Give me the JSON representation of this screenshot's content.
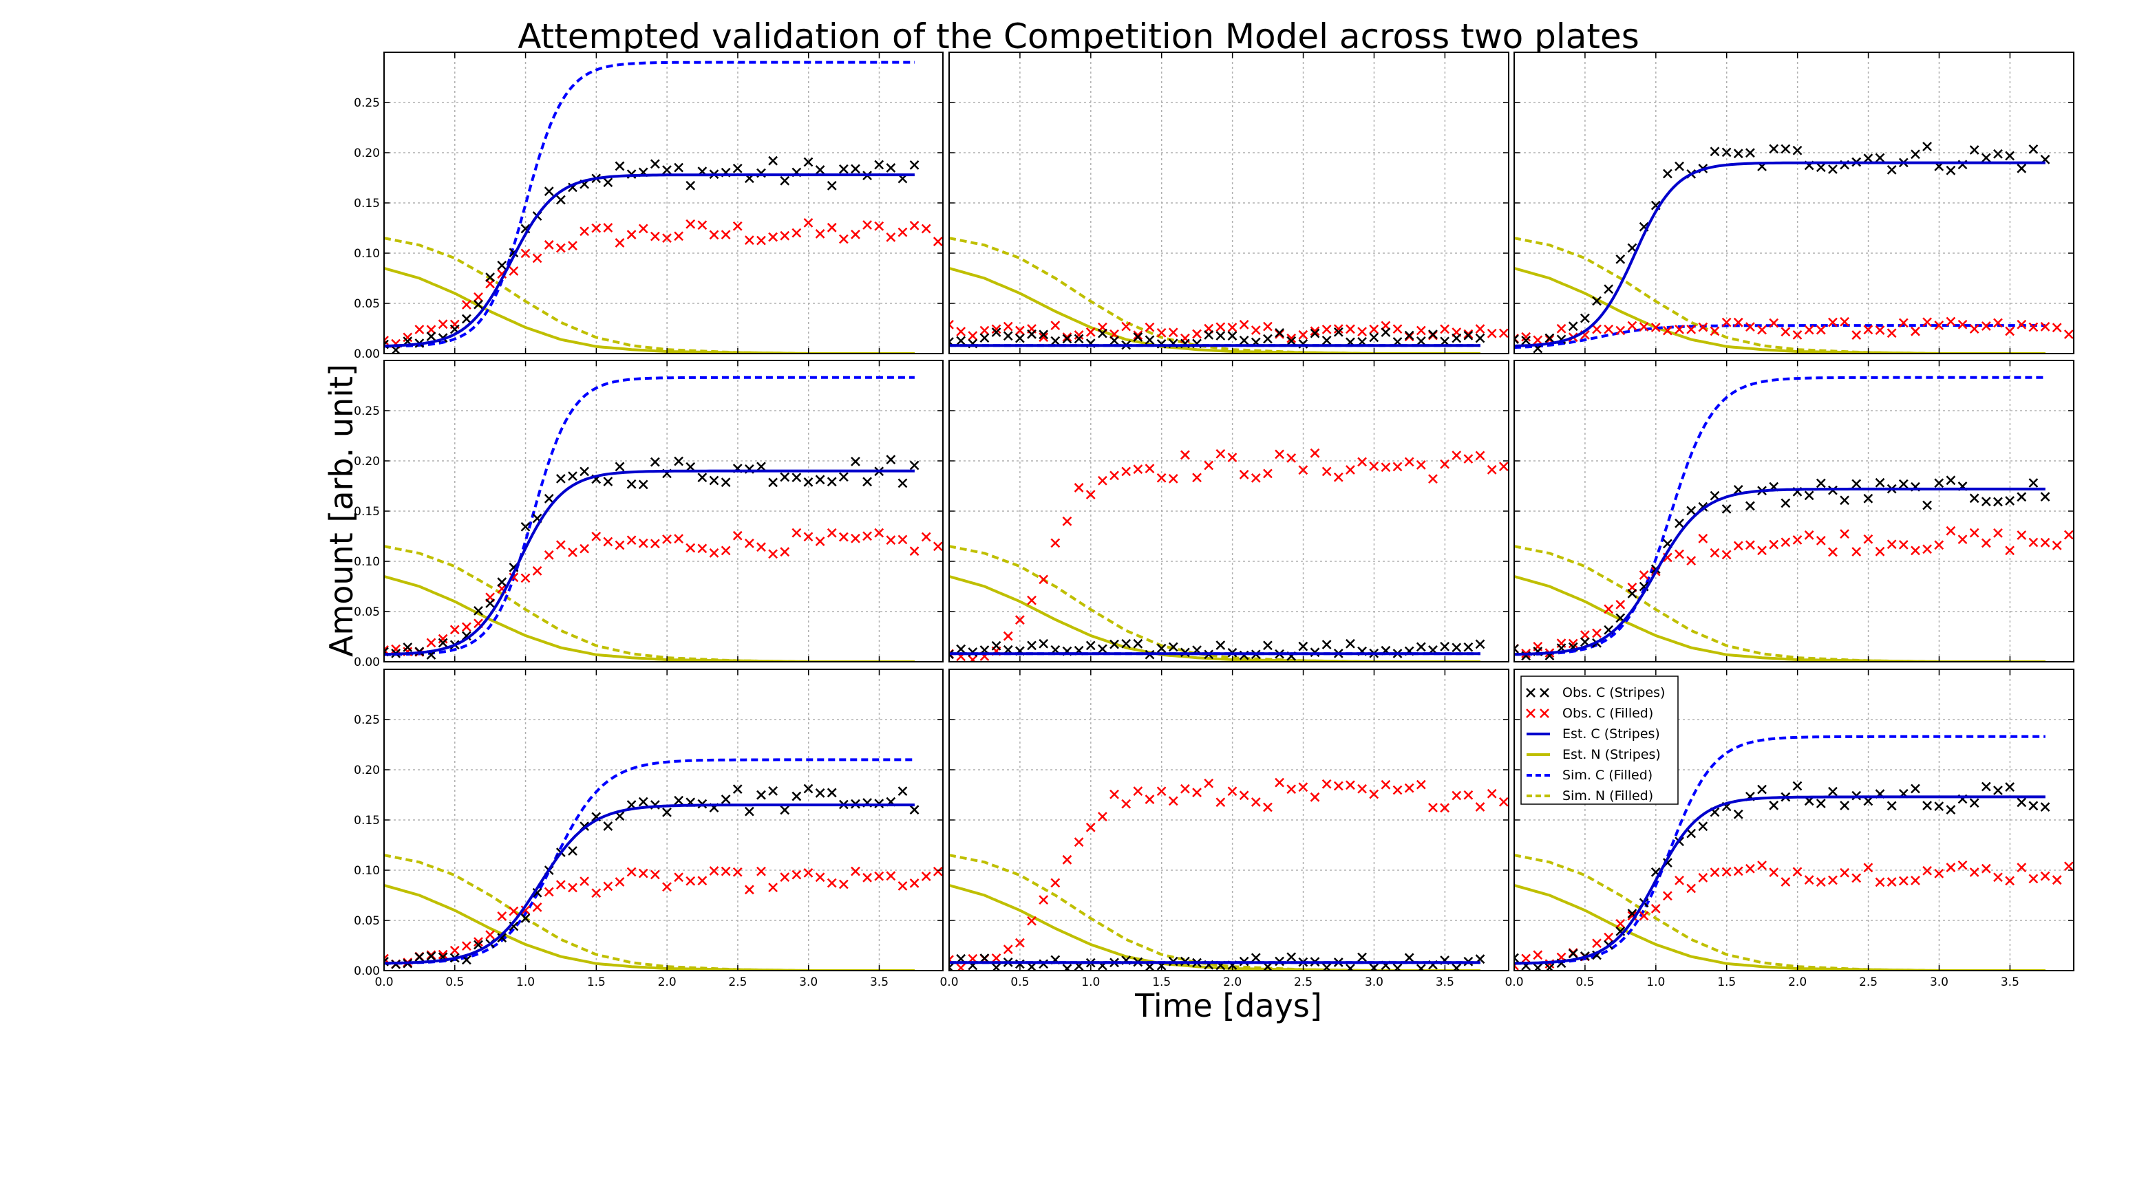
{
  "title": "Attempted validation of the Competition Model across two plates",
  "xlabel": "Time [days]",
  "ylabel": "Amount [arb. unit]",
  "xticks": [
    "0.0",
    "0.5",
    "1.0",
    "1.5",
    "2.0",
    "2.5",
    "3.0",
    "3.5"
  ],
  "yticks": [
    "0.00",
    "0.05",
    "0.10",
    "0.15",
    "0.20",
    "0.25"
  ],
  "colors": {
    "obs_c_stripes": "#000000",
    "obs_c_filled": "#ff0000",
    "est_c": "#0000cc",
    "est_n": "#bfbf00",
    "sim_c": "#0000ff",
    "sim_n": "#bfbf00"
  },
  "legend": {
    "position": "upper-left of bottom-right panel",
    "entries": [
      {
        "key": "obs_c_stripes",
        "label": "Obs. C (Stripes)",
        "style": "x"
      },
      {
        "key": "obs_c_filled",
        "label": "Obs. C (Filled)",
        "style": "x"
      },
      {
        "key": "est_c",
        "label": "Est. C (Stripes)",
        "style": "solid"
      },
      {
        "key": "est_n",
        "label": "Est. N (Stripes)",
        "style": "solid"
      },
      {
        "key": "sim_c",
        "label": "Sim. C (Filled)",
        "style": "dashed"
      },
      {
        "key": "sim_n",
        "label": "Sim. N (Filled)",
        "style": "dashed"
      }
    ]
  },
  "chart_data": {
    "type": "scatter",
    "layout": "3x3 grid of panels sharing x and y axes",
    "xlim": [
      0,
      3.95
    ],
    "ylim": [
      0,
      0.3
    ],
    "grid": true,
    "shared_series": {
      "est_n": {
        "x": [
          0,
          0.25,
          0.5,
          0.75,
          1.0,
          1.25,
          1.5,
          1.75,
          2.0,
          2.5,
          3.0,
          3.75
        ],
        "y": [
          0.085,
          0.075,
          0.06,
          0.042,
          0.026,
          0.014,
          0.007,
          0.004,
          0.002,
          0.001,
          0.0,
          0.0
        ]
      },
      "sim_n": {
        "x": [
          0,
          0.25,
          0.5,
          0.75,
          1.0,
          1.25,
          1.5,
          1.75,
          2.0,
          2.5,
          3.0,
          3.75
        ],
        "y": [
          0.115,
          0.108,
          0.095,
          0.075,
          0.052,
          0.031,
          0.016,
          0.008,
          0.004,
          0.001,
          0.0,
          0.0
        ]
      }
    },
    "panels": [
      {
        "row": 1,
        "col": 1,
        "obs_c_stripes": {
          "x_end": 3.75,
          "k": 3.0,
          "t0": 0.85,
          "y0": 0.007,
          "y1": 0.18
        },
        "obs_c_filled": {
          "x_end": 3.95,
          "k": 2.4,
          "t0": 0.75,
          "y0": 0.008,
          "y1": 0.12
        },
        "est_c": {
          "k": 3.2,
          "t0": 0.9,
          "y0": 0.007,
          "y1": 0.178
        },
        "sim_c": {
          "k": 3.6,
          "t0": 1.0,
          "y0": 0.007,
          "y1": 0.29
        }
      },
      {
        "row": 1,
        "col": 2,
        "obs_c_stripes": {
          "x_end": 3.75,
          "flat": 0.015
        },
        "obs_c_filled": {
          "x_end": 3.95,
          "flat": 0.022
        },
        "est_c": {
          "flat": 0.008
        },
        "sim_c": {
          "flat": 0.008
        }
      },
      {
        "row": 1,
        "col": 3,
        "obs_c_stripes": {
          "x_end": 3.75,
          "k": 3.2,
          "t0": 0.8,
          "y0": 0.008,
          "y1": 0.195
        },
        "obs_c_filled": {
          "x_end": 3.95,
          "k": 4.0,
          "t0": 0.2,
          "y0": 0.01,
          "y1": 0.025
        },
        "est_c": {
          "k": 3.4,
          "t0": 0.85,
          "y0": 0.007,
          "y1": 0.19
        },
        "sim_c": {
          "k": 2.5,
          "t0": 0.6,
          "y0": 0.005,
          "y1": 0.028
        }
      },
      {
        "row": 2,
        "col": 1,
        "obs_c_stripes": {
          "x_end": 3.75,
          "k": 3.0,
          "t0": 0.9,
          "y0": 0.007,
          "y1": 0.19
        },
        "obs_c_filled": {
          "x_end": 3.95,
          "k": 2.5,
          "t0": 0.8,
          "y0": 0.008,
          "y1": 0.118
        },
        "est_c": {
          "k": 3.2,
          "t0": 0.95,
          "y0": 0.007,
          "y1": 0.19
        },
        "sim_c": {
          "k": 3.6,
          "t0": 1.05,
          "y0": 0.007,
          "y1": 0.283
        }
      },
      {
        "row": 2,
        "col": 2,
        "obs_c_stripes": {
          "x_end": 3.75,
          "flat": 0.012
        },
        "obs_c_filled": {
          "x_end": 3.95,
          "k": 4.0,
          "t0": 0.7,
          "y0": 0.005,
          "y1": 0.195
        },
        "est_c": {
          "flat": 0.008
        },
        "sim_c": {
          "flat": 0.008
        }
      },
      {
        "row": 2,
        "col": 3,
        "obs_c_stripes": {
          "x_end": 3.75,
          "k": 2.8,
          "t0": 0.95,
          "y0": 0.007,
          "y1": 0.168
        },
        "obs_c_filled": {
          "x_end": 3.95,
          "k": 2.6,
          "t0": 0.8,
          "y0": 0.008,
          "y1": 0.12
        },
        "est_c": {
          "k": 3.0,
          "t0": 1.0,
          "y0": 0.007,
          "y1": 0.172
        },
        "sim_c": {
          "k": 3.2,
          "t0": 1.1,
          "y0": 0.007,
          "y1": 0.283
        }
      },
      {
        "row": 3,
        "col": 1,
        "obs_c_stripes": {
          "x_end": 3.75,
          "k": 2.6,
          "t0": 1.15,
          "y0": 0.007,
          "y1": 0.17
        },
        "obs_c_filled": {
          "x_end": 3.95,
          "k": 2.4,
          "t0": 0.85,
          "y0": 0.008,
          "y1": 0.09
        },
        "est_c": {
          "k": 2.8,
          "t0": 1.1,
          "y0": 0.007,
          "y1": 0.165
        },
        "sim_c": {
          "k": 2.8,
          "t0": 1.2,
          "y0": 0.007,
          "y1": 0.21
        }
      },
      {
        "row": 3,
        "col": 2,
        "obs_c_stripes": {
          "x_end": 3.75,
          "flat": 0.008
        },
        "obs_c_filled": {
          "x_end": 3.95,
          "k": 3.8,
          "t0": 0.75,
          "y0": 0.005,
          "y1": 0.175
        },
        "est_c": {
          "flat": 0.008
        },
        "sim_c": {
          "flat": 0.008
        }
      },
      {
        "row": 3,
        "col": 3,
        "obs_c_stripes": {
          "x_end": 3.75,
          "k": 3.0,
          "t0": 1.0,
          "y0": 0.007,
          "y1": 0.172
        },
        "obs_c_filled": {
          "x_end": 3.95,
          "k": 2.6,
          "t0": 0.85,
          "y0": 0.008,
          "y1": 0.098
        },
        "est_c": {
          "k": 3.2,
          "t0": 1.0,
          "y0": 0.007,
          "y1": 0.173
        },
        "sim_c": {
          "k": 3.2,
          "t0": 1.1,
          "y0": 0.007,
          "y1": 0.233
        }
      }
    ]
  }
}
